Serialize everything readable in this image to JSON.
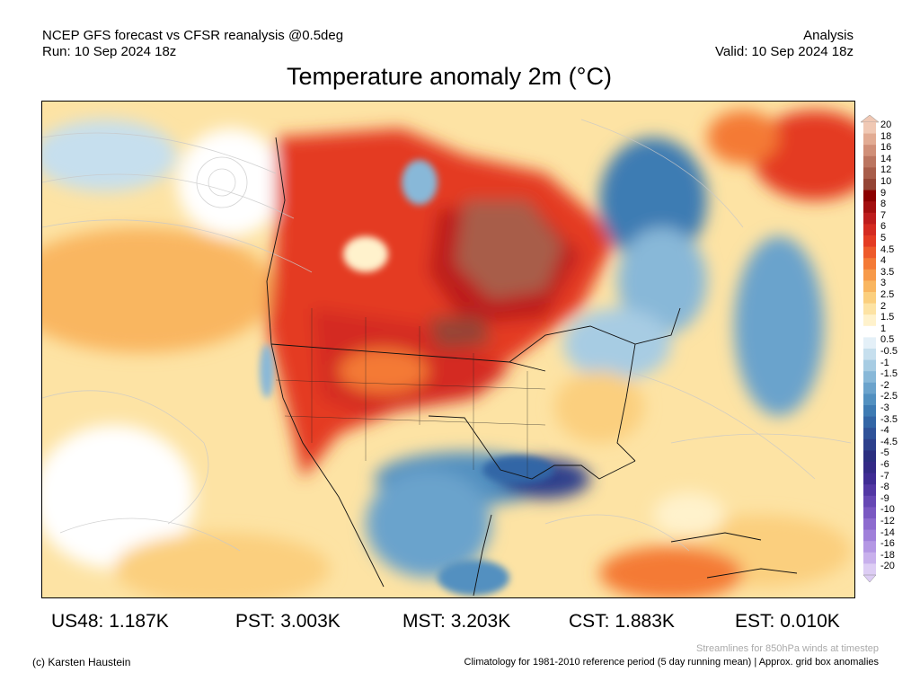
{
  "header": {
    "left_line1": "NCEP GFS forecast vs CFSR reanalysis @0.5deg",
    "left_line2": "Run: 10 Sep 2024 18z",
    "right_line1": "Analysis",
    "right_line2": "Valid: 10 Sep 2024 18z"
  },
  "title": "Temperature anomaly 2m (°C)",
  "colorbar": {
    "labels": [
      "20",
      "18",
      "16",
      "14",
      "12",
      "10",
      "9",
      "8",
      "7",
      "6",
      "5",
      "4.5",
      "4",
      "3.5",
      "3",
      "2.5",
      "2",
      "1.5",
      "1",
      "0.5",
      "-0.5",
      "-1",
      "-1.5",
      "-2",
      "-2.5",
      "-3",
      "-3.5",
      "-4",
      "-4.5",
      "-5",
      "-6",
      "-7",
      "-8",
      "-9",
      "-10",
      "-12",
      "-14",
      "-16",
      "-18",
      "-20"
    ],
    "colors": [
      "#f0c8b4",
      "#e2ab93",
      "#d08f78",
      "#bb7560",
      "#a85d4a",
      "#954535",
      "#8b0000",
      "#a30f0f",
      "#bd1c1c",
      "#d42a20",
      "#e43b22",
      "#ee5a2a",
      "#f47a36",
      "#f79a4a",
      "#f9b660",
      "#fbcf7e",
      "#fde3a4",
      "#fff2cc",
      "#ffffff",
      "#e4f0f8",
      "#c6dfee",
      "#a7cce3",
      "#88b8d8",
      "#6ba3cc",
      "#5290c0",
      "#3e7bb3",
      "#3366a6",
      "#2f5299",
      "#2d408c",
      "#2b2f80",
      "#332a86",
      "#3f2c94",
      "#5237a4",
      "#6647b4",
      "#7a58c2",
      "#8d6bcf",
      "#a080da",
      "#b497e4",
      "#c8b0ec",
      "#ddcdf4"
    ]
  },
  "stats": [
    {
      "label": "US48:",
      "value": "1.187K"
    },
    {
      "label": "PST:",
      "value": "3.003K"
    },
    {
      "label": "MST:",
      "value": "3.203K"
    },
    {
      "label": "CST:",
      "value": "1.883K"
    },
    {
      "label": "EST:",
      "value": "0.010K"
    }
  ],
  "footer": {
    "credit": "(c) Karsten Haustein",
    "streamlines_note": "Streamlines for 850hPa winds at timestep",
    "climatology_note": "Climatology for 1981-2010 reference period (5 day running mean) | Approx. grid box anomalies"
  }
}
